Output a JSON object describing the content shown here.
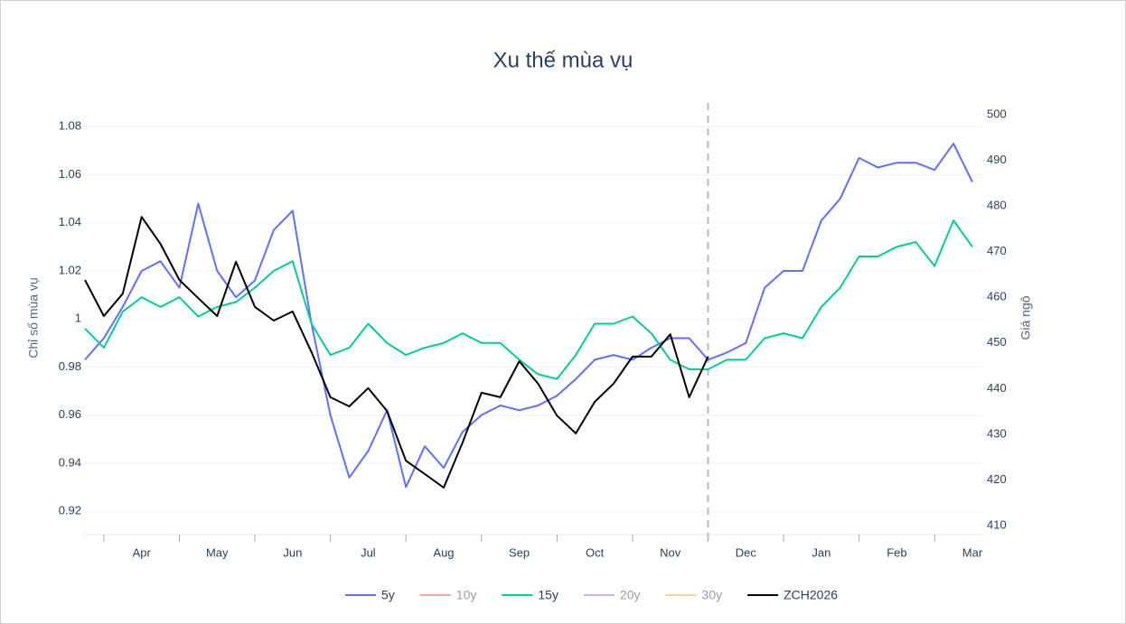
{
  "chart_data": {
    "type": "line",
    "title": "Xu thế mùa vụ",
    "y_label": "Chỉ số mùa vụ",
    "y2_label": "Giá ngô",
    "categories": [
      null,
      null,
      null,
      "Apr",
      null,
      null,
      null,
      "May",
      null,
      null,
      null,
      "Jun",
      null,
      null,
      null,
      "Jul",
      null,
      null,
      null,
      "Aug",
      null,
      null,
      null,
      "Sep",
      null,
      null,
      null,
      "Oct",
      null,
      null,
      null,
      "Nov",
      null,
      null,
      null,
      "Dec",
      null,
      null,
      null,
      "Jan",
      null,
      null,
      null,
      "Feb",
      null,
      null,
      null,
      "Mar"
    ],
    "ylim": [
      0.914,
      1.085
    ],
    "yticks": [
      0.92,
      0.94,
      0.96,
      0.98,
      1,
      1.02,
      1.04,
      1.06,
      1.08
    ],
    "y2lim": [
      410,
      500
    ],
    "y2ticks": [
      410,
      420,
      430,
      440,
      450,
      460,
      470,
      480,
      490,
      500
    ],
    "grid": true,
    "marker_index": 33,
    "legend": "bottom",
    "series": [
      {
        "name": "5y",
        "color": "#636efa",
        "axis": "y",
        "values": [
          0.983,
          0.992,
          1.005,
          1.02,
          1.024,
          1.013,
          1.048,
          1.02,
          1.009,
          1.016,
          1.037,
          1.045,
          0.998,
          0.96,
          0.934,
          0.945,
          0.962,
          0.93,
          0.947,
          0.938,
          0.953,
          0.96,
          0.964,
          0.962,
          0.964,
          0.968,
          0.975,
          0.983,
          0.985,
          0.983,
          0.988,
          0.992,
          0.992,
          0.983,
          0.986,
          0.99,
          1.013,
          1.02,
          1.02,
          1.041,
          1.05,
          1.067,
          1.063,
          1.065,
          1.065,
          1.062,
          1.073,
          1.057
        ]
      },
      {
        "name": "10y",
        "color": "#ef553b",
        "axis": "y",
        "visible": false
      },
      {
        "name": "15y",
        "color": "#00cc96",
        "axis": "y",
        "values": [
          0.996,
          0.988,
          1.003,
          1.009,
          1.005,
          1.009,
          1.001,
          1.005,
          1.007,
          1.013,
          1.02,
          1.024,
          0.998,
          0.985,
          0.988,
          0.998,
          0.99,
          0.985,
          0.988,
          0.99,
          0.994,
          0.99,
          0.99,
          0.983,
          0.977,
          0.975,
          0.985,
          0.998,
          0.998,
          1.001,
          0.994,
          0.983,
          0.979,
          0.979,
          0.983,
          0.983,
          0.992,
          0.994,
          0.992,
          1.005,
          1.013,
          1.026,
          1.026,
          1.03,
          1.032,
          1.022,
          1.041,
          1.03
        ]
      },
      {
        "name": "20y",
        "color": "#ab63fa",
        "axis": "y",
        "visible": false
      },
      {
        "name": "30y",
        "color": "#ffa15a",
        "axis": "y",
        "visible": false
      },
      {
        "name": "ZCH2026",
        "color": "#000000",
        "axis": "y2",
        "values": [
          463.8,
          455.9,
          460.8,
          477.6,
          471.7,
          463.8,
          459.8,
          455.9,
          467.8,
          457.9,
          454.9,
          456.9,
          448.0,
          438.1,
          436.1,
          440.1,
          435.1,
          424.2,
          421.3,
          418.3,
          428.2,
          439.1,
          438.1,
          446.0,
          441.1,
          434.1,
          430.2,
          437.1,
          441.1,
          447.0,
          447.0,
          451.9,
          438.1,
          447.0,
          null,
          null,
          null,
          null,
          null,
          null,
          null,
          null,
          null,
          null,
          null,
          null,
          null,
          null
        ]
      }
    ]
  }
}
